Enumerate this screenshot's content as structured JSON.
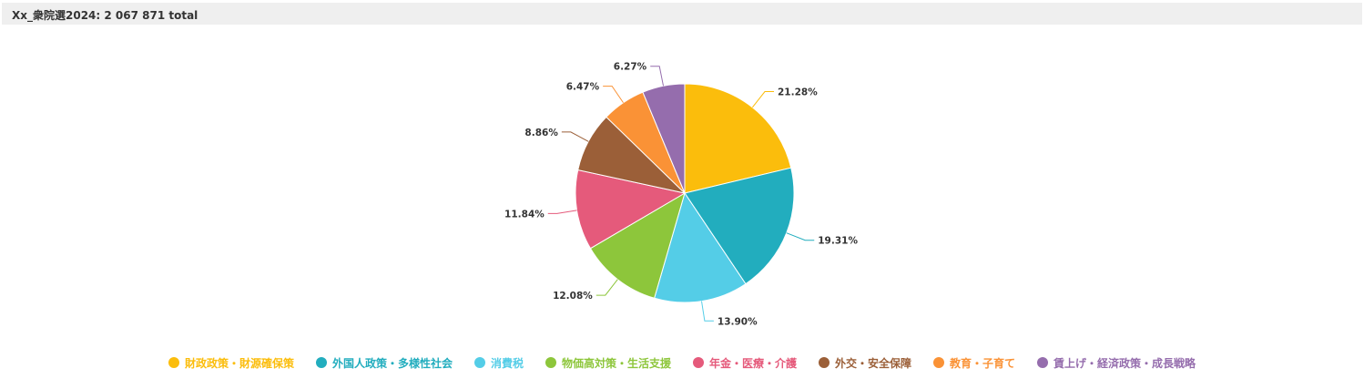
{
  "header": {
    "title": "Xx_衆院選2024: 2 067 871 total"
  },
  "chart_data": {
    "type": "pie",
    "title": "",
    "start_angle": "12 o'clock, clockwise",
    "slices": [
      {
        "name": "財政政策・財源確保策",
        "value": 21.28,
        "label": "21.28%",
        "color": "#fbbd0c"
      },
      {
        "name": "外国人政策・多様性社会",
        "value": 19.31,
        "label": "19.31%",
        "color": "#22adbe"
      },
      {
        "name": "消費税",
        "value": 13.9,
        "label": "13.90%",
        "color": "#54cde7"
      },
      {
        "name": "物価高対策・生活支援",
        "value": 12.08,
        "label": "12.08%",
        "color": "#8dc63b"
      },
      {
        "name": "年金・医療・介護",
        "value": 11.84,
        "label": "11.84%",
        "color": "#e55a7b"
      },
      {
        "name": "外交・安全保障",
        "value": 8.86,
        "label": "8.86%",
        "color": "#9b5f38"
      },
      {
        "name": "教育・子育て",
        "value": 6.47,
        "label": "6.47%",
        "color": "#fa9236"
      },
      {
        "name": "賃上げ・経済政策・成長戦略",
        "value": 6.27,
        "label": "6.27%",
        "color": "#956dad"
      }
    ],
    "legend_position": "bottom-center"
  }
}
